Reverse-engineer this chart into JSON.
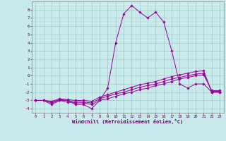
{
  "xlabel": "Windchill (Refroidissement éolien,°C)",
  "background_color": "#c8eaea",
  "grid_color": "#b0c8c8",
  "line_color": "#990099",
  "x_ticks": [
    0,
    1,
    2,
    3,
    4,
    5,
    6,
    7,
    8,
    9,
    10,
    11,
    12,
    13,
    14,
    15,
    16,
    17,
    18,
    19,
    20,
    21,
    22,
    23
  ],
  "y_ticks": [
    -4,
    -3,
    -2,
    -1,
    0,
    1,
    2,
    3,
    4,
    5,
    6,
    7,
    8
  ],
  "ylim": [
    -4.5,
    9.0
  ],
  "xlim": [
    -0.5,
    23.5
  ],
  "series": [
    {
      "x": [
        0,
        1,
        2,
        3,
        4,
        5,
        6,
        7,
        8,
        9,
        10,
        11,
        12,
        13,
        14,
        15,
        16,
        17,
        18,
        19,
        20,
        21,
        22,
        23
      ],
      "y": [
        -3.0,
        -3.0,
        -3.5,
        -3.0,
        -3.0,
        -3.5,
        -3.5,
        -4.0,
        -3.0,
        -1.5,
        4.0,
        7.5,
        8.5,
        7.7,
        7.0,
        7.7,
        6.5,
        3.0,
        -1.0,
        -1.5,
        -1.0,
        -1.0,
        -2.0,
        -2.0
      ]
    },
    {
      "x": [
        0,
        1,
        2,
        3,
        4,
        5,
        6,
        7,
        8,
        9,
        10,
        11,
        12,
        13,
        14,
        15,
        16,
        17,
        18,
        19,
        20,
        21,
        22,
        23
      ],
      "y": [
        -3.0,
        -3.0,
        -3.3,
        -3.0,
        -3.2,
        -3.3,
        -3.3,
        -3.5,
        -3.0,
        -2.8,
        -2.5,
        -2.2,
        -2.0,
        -1.7,
        -1.5,
        -1.2,
        -1.0,
        -0.7,
        -0.4,
        -0.2,
        0.0,
        0.1,
        -1.8,
        -1.8
      ]
    },
    {
      "x": [
        0,
        1,
        2,
        3,
        4,
        5,
        6,
        7,
        8,
        9,
        10,
        11,
        12,
        13,
        14,
        15,
        16,
        17,
        18,
        19,
        20,
        21,
        22,
        23
      ],
      "y": [
        -3.0,
        -3.0,
        -3.2,
        -2.9,
        -3.0,
        -3.2,
        -3.2,
        -3.3,
        -2.8,
        -2.5,
        -2.2,
        -2.0,
        -1.7,
        -1.4,
        -1.2,
        -1.0,
        -0.7,
        -0.4,
        -0.2,
        0.0,
        0.2,
        0.3,
        -1.9,
        -1.9
      ]
    },
    {
      "x": [
        0,
        1,
        2,
        3,
        4,
        5,
        6,
        7,
        8,
        9,
        10,
        11,
        12,
        13,
        14,
        15,
        16,
        17,
        18,
        19,
        20,
        21,
        22,
        23
      ],
      "y": [
        -3.0,
        -3.0,
        -3.1,
        -2.8,
        -2.9,
        -3.0,
        -3.0,
        -3.1,
        -2.6,
        -2.3,
        -2.0,
        -1.7,
        -1.4,
        -1.1,
        -0.9,
        -0.7,
        -0.4,
        -0.1,
        0.1,
        0.3,
        0.5,
        0.6,
        -2.0,
        -2.0
      ]
    }
  ]
}
